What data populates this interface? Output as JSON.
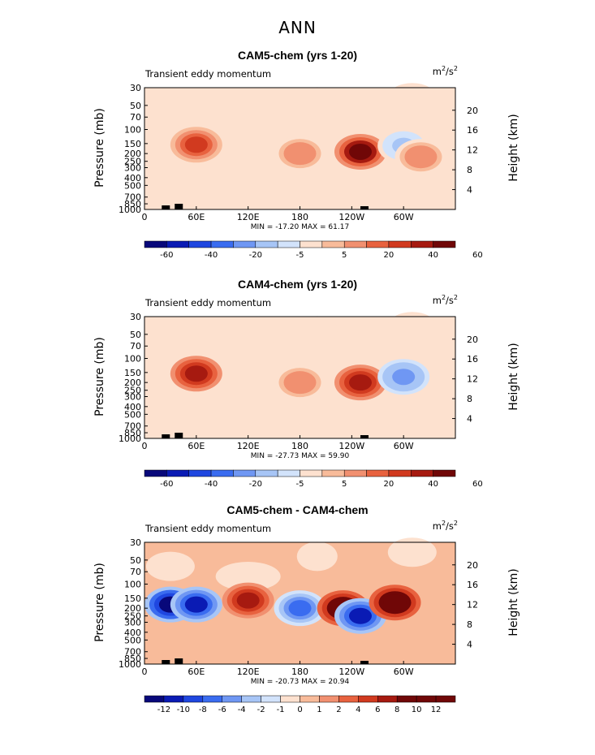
{
  "page_title": "ANN",
  "panels": [
    {
      "title": "CAM5-chem (yrs 1-20)",
      "var_name": "Transient eddy momentum",
      "units_base": "m",
      "units_exp1": "2",
      "units_mid": "/s",
      "units_exp2": "2",
      "minmax": "MIN = -17.20   MAX =  61.17",
      "min": -17.2,
      "max": 61.17,
      "colorbar_labels": [
        "-60",
        "-40",
        "-20",
        "-5",
        "5",
        "20",
        "40",
        "60"
      ]
    },
    {
      "title": "CAM4-chem (yrs 1-20)",
      "var_name": "Transient eddy momentum",
      "units_base": "m",
      "units_exp1": "2",
      "units_mid": "/s",
      "units_exp2": "2",
      "minmax": "MIN = -27.73   MAX =  59.90",
      "min": -27.73,
      "max": 59.9,
      "colorbar_labels": [
        "-60",
        "-40",
        "-20",
        "-5",
        "5",
        "20",
        "40",
        "60"
      ]
    },
    {
      "title": "CAM5-chem - CAM4-chem",
      "var_name": "Transient eddy momentum",
      "units_base": "m",
      "units_exp1": "2",
      "units_mid": "/s",
      "units_exp2": "2",
      "minmax": "MIN = -20.73   MAX =  20.94",
      "min": -20.73,
      "max": 20.94,
      "colorbar_labels": [
        "-12",
        "-10",
        "-8",
        "-6",
        "-4",
        "-2",
        "-1",
        "0",
        "1",
        "2",
        "4",
        "6",
        "8",
        "10",
        "12"
      ]
    }
  ],
  "axes": {
    "ylabel_left": "Pressure (mb)",
    "ylabel_right": "Height (km)",
    "pressure_ticks": [
      "30",
      "50",
      "70",
      "100",
      "150",
      "200",
      "250",
      "300",
      "400",
      "500",
      "700",
      "850",
      "1000"
    ],
    "height_ticks": [
      "20",
      "16",
      "12",
      "8",
      "4"
    ],
    "lon_ticks": [
      "0",
      "60E",
      "120E",
      "180",
      "120W",
      "60W"
    ]
  },
  "palette": [
    "#08087a",
    "#0a1bb4",
    "#1f47e0",
    "#3a6cf0",
    "#6f97f3",
    "#a7c5f6",
    "#d2e3fb",
    "#fde1cf",
    "#f8bb9a",
    "#f19070",
    "#e8623f",
    "#d13a1f",
    "#a61a10",
    "#700707"
  ],
  "chart_data": [
    {
      "type": "heatmap",
      "title": "CAM5-chem (yrs 1-20)",
      "x_axis": "longitude 0-360",
      "y_axis": "pressure (mb), log scale, 30-1000",
      "colorbar_levels": [
        -60,
        -50,
        -40,
        -30,
        -20,
        -10,
        -5,
        5,
        10,
        20,
        30,
        40,
        50,
        60
      ],
      "features": [
        {
          "lon": 60,
          "p": 155,
          "value": 40
        },
        {
          "lon": 180,
          "p": 200,
          "value": 15
        },
        {
          "lon": 250,
          "p": 190,
          "value": 55
        },
        {
          "lon": 300,
          "p": 160,
          "value": -10
        },
        {
          "lon": 320,
          "p": 220,
          "value": 20
        }
      ],
      "min": -17.2,
      "max": 61.17
    },
    {
      "type": "heatmap",
      "title": "CAM4-chem (yrs 1-20)",
      "x_axis": "longitude 0-360",
      "y_axis": "pressure (mb), log scale, 30-1000",
      "colorbar_levels": [
        -60,
        -50,
        -40,
        -30,
        -20,
        -10,
        -5,
        5,
        10,
        20,
        30,
        40,
        50,
        60
      ],
      "features": [
        {
          "lon": 60,
          "p": 155,
          "value": 45
        },
        {
          "lon": 180,
          "p": 200,
          "value": 15
        },
        {
          "lon": 250,
          "p": 200,
          "value": 45
        },
        {
          "lon": 300,
          "p": 170,
          "value": -25
        }
      ],
      "min": -27.73,
      "max": 59.9
    },
    {
      "type": "heatmap",
      "title": "CAM5-chem - CAM4-chem",
      "x_axis": "longitude 0-360",
      "y_axis": "pressure (mb), log scale, 30-1000",
      "colorbar_levels": [
        -12,
        -10,
        -8,
        -6,
        -4,
        -2,
        -1,
        0,
        1,
        2,
        4,
        6,
        8,
        10,
        12
      ],
      "features": [
        {
          "lon": 30,
          "p": 180,
          "value": -12
        },
        {
          "lon": 60,
          "p": 180,
          "value": -10
        },
        {
          "lon": 120,
          "p": 160,
          "value": 8
        },
        {
          "lon": 180,
          "p": 200,
          "value": -6
        },
        {
          "lon": 230,
          "p": 200,
          "value": 12
        },
        {
          "lon": 250,
          "p": 250,
          "value": -10
        },
        {
          "lon": 290,
          "p": 170,
          "value": 12
        }
      ],
      "min": -20.73,
      "max": 20.94
    }
  ]
}
